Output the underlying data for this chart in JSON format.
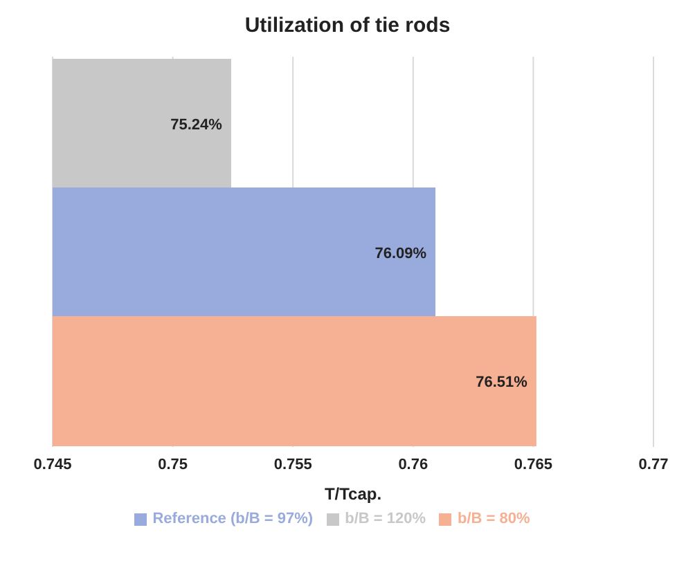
{
  "chart_data": {
    "type": "bar",
    "orientation": "horizontal",
    "title": "Utilization of tie rods",
    "xlabel": "T/Tcap.",
    "categories": [
      null
    ],
    "series": [
      {
        "name": "b/B = 120%",
        "color": "#c8c8c8",
        "values": [
          0.7524
        ],
        "value_labels": [
          "75.24%"
        ]
      },
      {
        "name": "Reference (b/B = 97%)",
        "color": "#98abdc",
        "values": [
          0.7609
        ],
        "value_labels": [
          "76.09%"
        ]
      },
      {
        "name": "b/B = 80%",
        "color": "#f6b093",
        "values": [
          0.7651
        ],
        "value_labels": [
          "76.51%"
        ]
      }
    ],
    "xlim": [
      0.745,
      0.77
    ],
    "xticks": [
      0.745,
      0.75,
      0.755,
      0.76,
      0.765,
      0.77
    ],
    "grid": "x",
    "legend": "bottom",
    "tick_labels": "x"
  }
}
